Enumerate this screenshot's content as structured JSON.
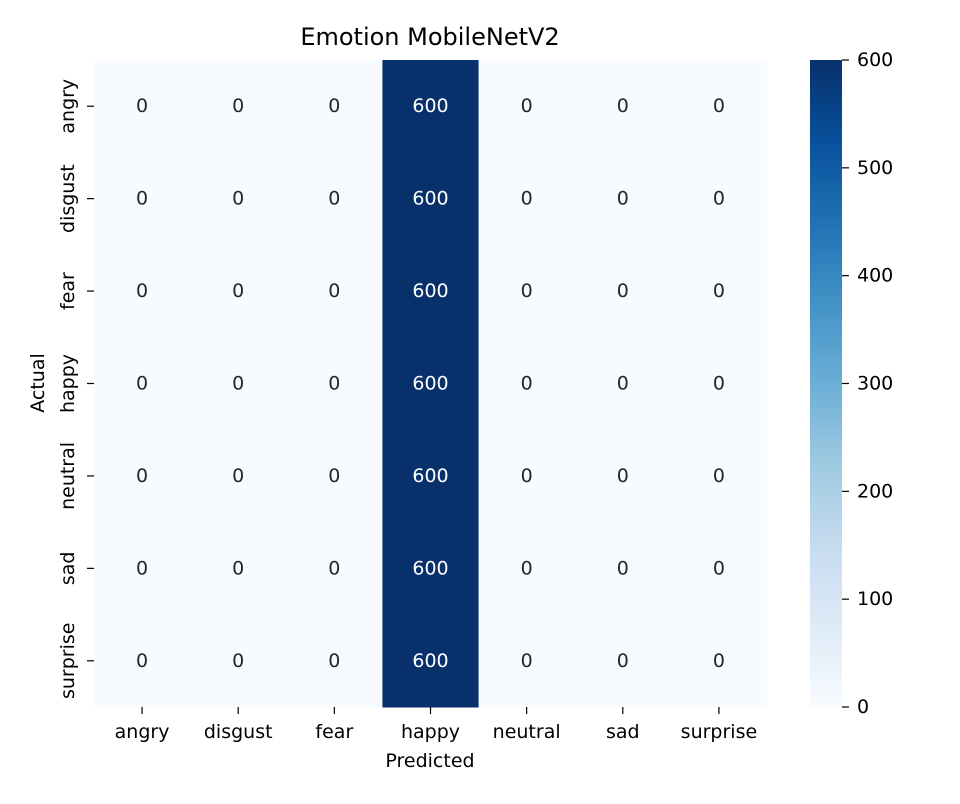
{
  "chart_data": {
    "type": "heatmap",
    "title": "Emotion MobileNetV2",
    "xlabel": "Predicted",
    "ylabel": "Actual",
    "x_categories": [
      "angry",
      "disgust",
      "fear",
      "happy",
      "neutral",
      "sad",
      "surprise"
    ],
    "y_categories": [
      "angry",
      "disgust",
      "fear",
      "happy",
      "neutral",
      "sad",
      "surprise"
    ],
    "values": [
      [
        0,
        0,
        0,
        600,
        0,
        0,
        0
      ],
      [
        0,
        0,
        0,
        600,
        0,
        0,
        0
      ],
      [
        0,
        0,
        0,
        600,
        0,
        0,
        0
      ],
      [
        0,
        0,
        0,
        600,
        0,
        0,
        0
      ],
      [
        0,
        0,
        0,
        600,
        0,
        0,
        0
      ],
      [
        0,
        0,
        0,
        600,
        0,
        0,
        0
      ],
      [
        0,
        0,
        0,
        600,
        0,
        0,
        0
      ]
    ],
    "colorbar": {
      "range": [
        0,
        600
      ],
      "ticks": [
        0,
        100,
        200,
        300,
        400,
        500,
        600
      ],
      "colormap": "Blues",
      "color_low": "#f7fbff",
      "color_high": "#08306b"
    }
  }
}
